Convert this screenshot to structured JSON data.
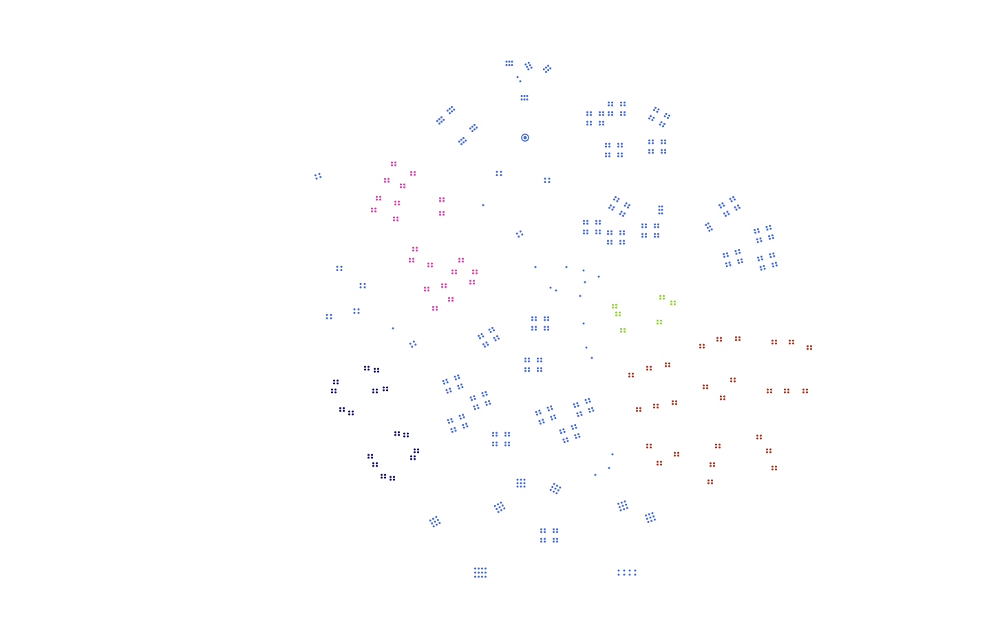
{
  "diagram": {
    "kind": "hierarchical dot cluster graph",
    "colors": {
      "default": "#4169e1",
      "magenta": "#e23ca8",
      "lime": "#8fd42a",
      "rust": "#b0301a",
      "navy": "#0a0a6e",
      "background": "#ffffff"
    },
    "root": {
      "label": "",
      "color": "default"
    },
    "clusters": [
      {
        "id": "c1",
        "color": "default",
        "shape": "quad"
      },
      {
        "id": "c2",
        "color": "default",
        "shape": "quad"
      },
      {
        "id": "c3",
        "color": "default",
        "shape": "quad"
      },
      {
        "id": "c4",
        "color": "default",
        "shape": "quad"
      },
      {
        "id": "c5",
        "color": "default",
        "shape": "quad"
      },
      {
        "id": "c6",
        "color": "default",
        "shape": "quad"
      },
      {
        "id": "c7",
        "color": "default",
        "shape": "quad"
      },
      {
        "id": "c8",
        "color": "magenta",
        "shape": "pair"
      },
      {
        "id": "c9",
        "color": "magenta",
        "shape": "pair"
      },
      {
        "id": "c10",
        "color": "lime",
        "shape": "pair"
      },
      {
        "id": "c11",
        "color": "rust",
        "shape": "pair"
      },
      {
        "id": "c12",
        "color": "navy",
        "shape": "pair"
      },
      {
        "id": "c13",
        "color": "default",
        "shape": "quad"
      },
      {
        "id": "c14",
        "color": "default",
        "shape": "quad"
      },
      {
        "id": "c15",
        "color": "default",
        "shape": "quad"
      },
      {
        "id": "c16",
        "color": "default",
        "shape": "quad"
      }
    ]
  }
}
